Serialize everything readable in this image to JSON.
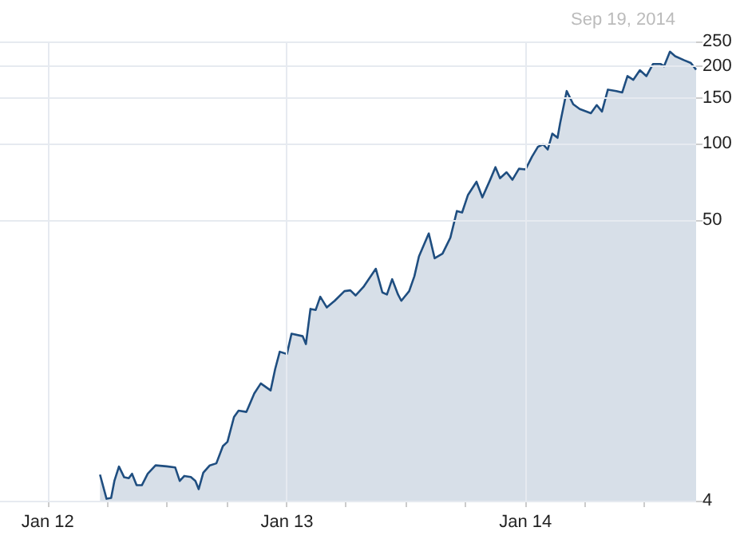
{
  "chart_data": {
    "type": "area",
    "title": "Sep 19, 2014",
    "x": [
      "2012-03-21",
      "2012-03-31",
      "2012-04-07",
      "2012-04-12",
      "2012-04-19",
      "2012-04-27",
      "2012-05-04",
      "2012-05-09",
      "2012-05-16",
      "2012-05-24",
      "2012-06-02",
      "2012-06-14",
      "2012-07-01",
      "2012-07-14",
      "2012-07-21",
      "2012-07-28",
      "2012-08-07",
      "2012-08-14",
      "2012-08-19",
      "2012-08-26",
      "2012-09-05",
      "2012-09-15",
      "2012-09-25",
      "2012-10-02",
      "2012-10-12",
      "2012-10-19",
      "2012-10-31",
      "2012-11-12",
      "2012-11-22",
      "2012-12-07",
      "2012-12-14",
      "2012-12-21",
      "2013-01-01",
      "2013-01-08",
      "2013-01-25",
      "2013-01-30",
      "2013-02-06",
      "2013-02-14",
      "2013-02-21",
      "2013-03-03",
      "2013-03-15",
      "2013-03-30",
      "2013-04-08",
      "2013-04-16",
      "2013-04-28",
      "2013-05-17",
      "2013-05-27",
      "2013-06-03",
      "2013-06-11",
      "2013-06-20",
      "2013-06-25",
      "2013-07-07",
      "2013-07-15",
      "2013-07-22",
      "2013-08-06",
      "2013-08-15",
      "2013-08-27",
      "2013-09-08",
      "2013-09-18",
      "2013-09-26",
      "2013-10-05",
      "2013-10-18",
      "2013-10-27",
      "2013-11-08",
      "2013-11-16",
      "2013-11-23",
      "2013-12-03",
      "2013-12-12",
      "2013-12-22",
      "2014-01-01",
      "2014-01-11",
      "2014-01-20",
      "2014-01-28",
      "2014-02-04",
      "2014-02-11",
      "2014-02-19",
      "2014-02-23",
      "2014-03-05",
      "2014-03-15",
      "2014-03-25",
      "2014-04-11",
      "2014-04-20",
      "2014-04-28",
      "2014-05-07",
      "2014-05-20",
      "2014-05-29",
      "2014-06-06",
      "2014-06-15",
      "2014-06-25",
      "2014-07-05",
      "2014-07-15",
      "2014-07-27",
      "2014-08-01",
      "2014-08-10",
      "2014-08-18",
      "2014-09-01",
      "2014-09-11",
      "2014-09-19"
    ],
    "series": [
      {
        "color": "#1f4e80",
        "values": [
          5.06,
          4.07,
          4.1,
          4.78,
          5.44,
          4.94,
          4.9,
          5.1,
          4.6,
          4.6,
          5.1,
          5.5,
          5.45,
          5.4,
          4.78,
          5.0,
          4.95,
          4.78,
          4.44,
          5.15,
          5.5,
          5.6,
          6.54,
          6.8,
          8.5,
          9.0,
          8.9,
          10.5,
          11.5,
          10.8,
          13.1,
          15.3,
          15.0,
          18.0,
          17.6,
          16.4,
          22.5,
          22.3,
          25.1,
          22.8,
          24.2,
          26.4,
          26.6,
          25.4,
          27.4,
          32.3,
          26.1,
          25.6,
          29.4,
          25.6,
          24.2,
          26.4,
          30.2,
          36.1,
          44.4,
          35.5,
          37.0,
          42.7,
          54.3,
          53.6,
          62.8,
          70.7,
          61.4,
          72,
          80.6,
          73,
          77,
          72,
          79.5,
          79,
          88.7,
          96.8,
          99,
          94.5,
          109,
          105,
          120,
          160,
          142,
          136,
          131,
          141,
          133,
          162,
          160,
          158,
          183,
          177,
          193,
          183,
          204,
          204,
          200,
          228,
          219,
          211,
          206,
          194
        ]
      }
    ],
    "xlim": [
      "2011-10-20",
      "2014-09-19"
    ],
    "xticks": [
      {
        "value": "2012-01-01",
        "label": "Jan 12"
      },
      {
        "value": "2012-04-01",
        "label": null
      },
      {
        "value": "2012-07-01",
        "label": null
      },
      {
        "value": "2012-10-01",
        "label": null
      },
      {
        "value": "2013-01-01",
        "label": "Jan 13"
      },
      {
        "value": "2013-04-01",
        "label": null
      },
      {
        "value": "2013-07-01",
        "label": null
      },
      {
        "value": "2013-10-01",
        "label": null
      },
      {
        "value": "2014-01-01",
        "label": "Jan 14"
      },
      {
        "value": "2014-04-01",
        "label": null
      },
      {
        "value": "2014-07-01",
        "label": null
      }
    ],
    "ylim": [
      4,
      250
    ],
    "yticks": [
      4,
      50,
      100,
      150,
      200,
      250
    ],
    "log": "y",
    "grid": true
  }
}
